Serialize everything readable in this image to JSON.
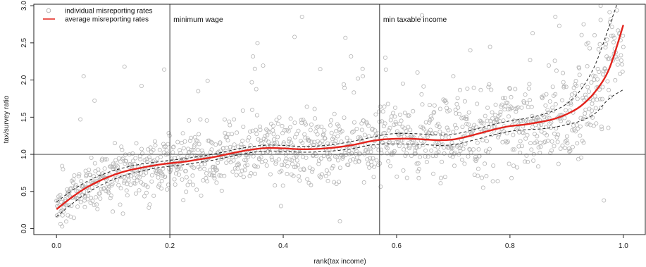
{
  "chart_data": {
    "type": "scatter",
    "xlabel": "rank(tax income)",
    "ylabel": "tax/survey ratio",
    "xlim": [
      -0.04,
      1.04
    ],
    "ylim": [
      -0.08,
      3.02
    ],
    "xticks": [
      0.0,
      0.2,
      0.4,
      0.6,
      0.8,
      1.0
    ],
    "xtick_labels": [
      "0.0",
      "0.2",
      "0.4",
      "0.6",
      "0.8",
      "1.0"
    ],
    "yticks": [
      0.0,
      0.5,
      1.0,
      1.5,
      2.0,
      2.5,
      3.0
    ],
    "ytick_labels": [
      "0.0",
      "0.5",
      "1.0",
      "1.5",
      "2.0",
      "2.5",
      "3.0"
    ],
    "reference_lines": [
      {
        "axis": "y",
        "value": 1.0,
        "color": "#555555"
      },
      {
        "axis": "x",
        "value": 0.2,
        "label": "minimum wage",
        "color": "#333333"
      },
      {
        "axis": "x",
        "value": 0.57,
        "label": "min taxable income",
        "color": "#333333"
      }
    ],
    "legend": {
      "position": "top-left",
      "entries": [
        {
          "label": "individual misreporting rates",
          "marker": "open-circle",
          "color": "#b5b5b5"
        },
        {
          "label": "average misreporting rates",
          "marker": "line",
          "color": "#e3231c"
        }
      ]
    },
    "scatter_series": {
      "marker": "open-circle",
      "color": "#b5b5b5",
      "approx_count": 1400,
      "description_points": [
        [
          0.01,
          0.03
        ],
        [
          0.02,
          0.18
        ],
        [
          0.05,
          0.42
        ],
        [
          0.08,
          0.71
        ],
        [
          0.1,
          0.8
        ],
        [
          0.12,
          2.18
        ],
        [
          0.15,
          1.92
        ],
        [
          0.19,
          2.14
        ],
        [
          0.25,
          1.85
        ],
        [
          0.35,
          2.15
        ],
        [
          0.42,
          2.58
        ],
        [
          0.5,
          0.1
        ],
        [
          0.54,
          2.15
        ],
        [
          0.58,
          2.3
        ],
        [
          0.7,
          2.05
        ],
        [
          0.73,
          2.4
        ],
        [
          0.84,
          2.63
        ],
        [
          0.88,
          2.85
        ],
        [
          0.93,
          2.75
        ],
        [
          0.96,
          3.0
        ]
      ]
    },
    "series": [
      {
        "name": "average misreporting rates",
        "color": "#e3231c",
        "style": "solid",
        "x": [
          0.0,
          0.025,
          0.05,
          0.075,
          0.1,
          0.125,
          0.15,
          0.175,
          0.2,
          0.225,
          0.25,
          0.275,
          0.3,
          0.325,
          0.35,
          0.375,
          0.4,
          0.425,
          0.45,
          0.475,
          0.5,
          0.525,
          0.55,
          0.575,
          0.6,
          0.625,
          0.65,
          0.675,
          0.7,
          0.725,
          0.75,
          0.775,
          0.8,
          0.825,
          0.85,
          0.875,
          0.9,
          0.925,
          0.95,
          0.975,
          1.0
        ],
        "values": [
          0.26,
          0.41,
          0.54,
          0.64,
          0.72,
          0.78,
          0.82,
          0.855,
          0.88,
          0.9,
          0.93,
          0.96,
          1.0,
          1.04,
          1.07,
          1.085,
          1.08,
          1.07,
          1.07,
          1.08,
          1.1,
          1.13,
          1.17,
          1.2,
          1.21,
          1.21,
          1.2,
          1.19,
          1.2,
          1.24,
          1.29,
          1.34,
          1.38,
          1.4,
          1.43,
          1.47,
          1.54,
          1.65,
          1.84,
          2.15,
          2.74
        ]
      },
      {
        "name": "upper band",
        "color": "#222222",
        "style": "dashed",
        "x": [
          0.0,
          0.025,
          0.05,
          0.075,
          0.1,
          0.125,
          0.15,
          0.175,
          0.2,
          0.225,
          0.25,
          0.275,
          0.3,
          0.325,
          0.35,
          0.375,
          0.4,
          0.425,
          0.45,
          0.475,
          0.5,
          0.525,
          0.55,
          0.575,
          0.6,
          0.625,
          0.65,
          0.675,
          0.7,
          0.725,
          0.75,
          0.775,
          0.8,
          0.825,
          0.85,
          0.875,
          0.9,
          0.925,
          0.95,
          0.975,
          0.99
        ],
        "values": [
          0.36,
          0.5,
          0.62,
          0.71,
          0.78,
          0.83,
          0.87,
          0.895,
          0.92,
          0.94,
          0.97,
          1.0,
          1.04,
          1.08,
          1.11,
          1.125,
          1.12,
          1.11,
          1.11,
          1.12,
          1.145,
          1.18,
          1.22,
          1.26,
          1.28,
          1.28,
          1.27,
          1.26,
          1.27,
          1.31,
          1.36,
          1.41,
          1.45,
          1.48,
          1.52,
          1.58,
          1.68,
          1.87,
          2.2,
          2.72,
          3.05
        ]
      },
      {
        "name": "lower band",
        "color": "#222222",
        "style": "dashed",
        "x": [
          0.0,
          0.025,
          0.05,
          0.075,
          0.1,
          0.125,
          0.15,
          0.175,
          0.2,
          0.225,
          0.25,
          0.275,
          0.3,
          0.325,
          0.35,
          0.375,
          0.4,
          0.425,
          0.45,
          0.475,
          0.5,
          0.525,
          0.55,
          0.575,
          0.6,
          0.625,
          0.65,
          0.675,
          0.7,
          0.725,
          0.75,
          0.775,
          0.8,
          0.825,
          0.85,
          0.875,
          0.9,
          0.925,
          0.95,
          0.975,
          1.0
        ],
        "values": [
          0.16,
          0.32,
          0.46,
          0.57,
          0.66,
          0.73,
          0.77,
          0.815,
          0.84,
          0.86,
          0.89,
          0.92,
          0.96,
          1.0,
          1.03,
          1.045,
          1.04,
          1.03,
          1.03,
          1.04,
          1.055,
          1.08,
          1.12,
          1.14,
          1.14,
          1.14,
          1.13,
          1.12,
          1.13,
          1.17,
          1.22,
          1.27,
          1.31,
          1.33,
          1.34,
          1.36,
          1.4,
          1.45,
          1.55,
          1.75,
          1.87
        ]
      }
    ],
    "grid": false
  }
}
